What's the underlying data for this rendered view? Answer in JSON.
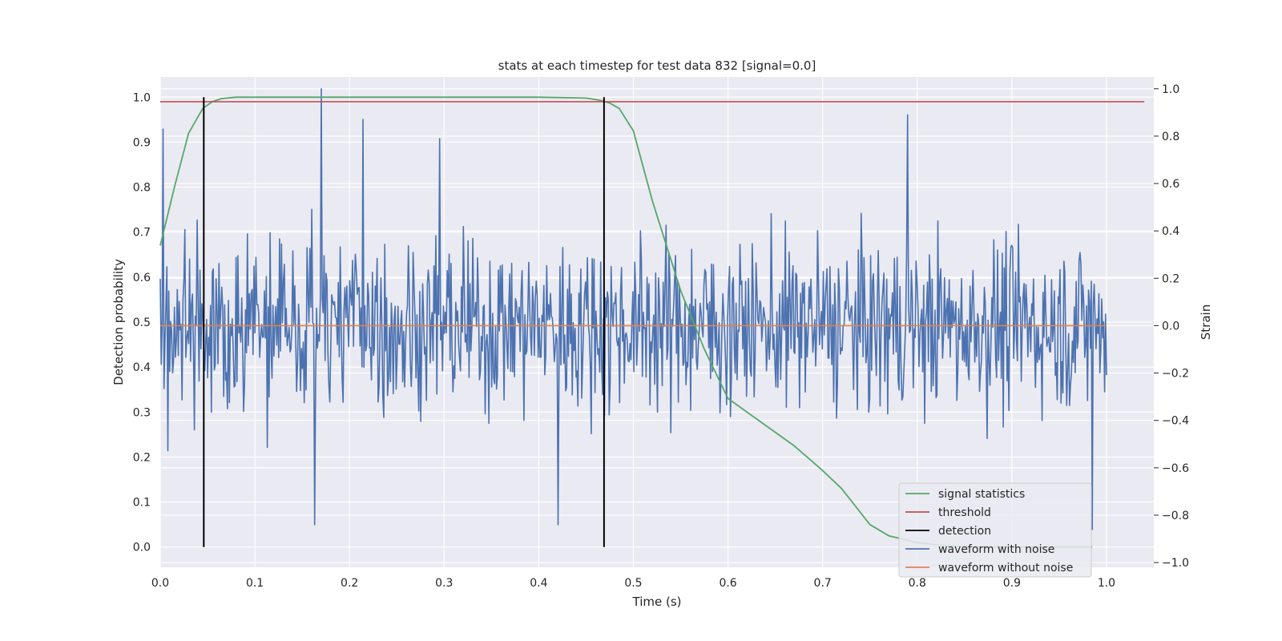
{
  "chart_data": {
    "type": "line",
    "title": "stats at each timestep for test data 832 [signal=0.0]",
    "xlabel": "Time (s)",
    "ylabel_left": "Detection probability",
    "ylabel_right": "Strain",
    "xlim": [
      0.0,
      1.05
    ],
    "ylim_left": [
      -0.045,
      1.045
    ],
    "ylim_right": [
      -1.02,
      1.05
    ],
    "x_ticks": [
      "0.0",
      "0.1",
      "0.2",
      "0.3",
      "0.4",
      "0.5",
      "0.6",
      "0.7",
      "0.8",
      "0.9",
      "1.0"
    ],
    "y_ticks_left": [
      "0.0",
      "0.1",
      "0.2",
      "0.3",
      "0.4",
      "0.5",
      "0.6",
      "0.7",
      "0.8",
      "0.9",
      "1.0"
    ],
    "y_ticks_right": [
      "−1.0",
      "−0.8",
      "−0.6",
      "−0.4",
      "−0.2",
      "0.0",
      "0.2",
      "0.4",
      "0.6",
      "0.8",
      "1.0"
    ],
    "grid": true,
    "legend_position": "bottom-right",
    "background_color": "#eaeaf2",
    "grid_color": "#ffffff",
    "series": [
      {
        "name": "signal statistics",
        "color": "#55a868",
        "axis": "left",
        "x": [
          0.0,
          0.015,
          0.03,
          0.045,
          0.055,
          0.065,
          0.08,
          0.1,
          0.2,
          0.3,
          0.4,
          0.45,
          0.465,
          0.475,
          0.485,
          0.5,
          0.52,
          0.55,
          0.575,
          0.6,
          0.64,
          0.67,
          0.7,
          0.72,
          0.75,
          0.77,
          0.8,
          0.83,
          0.86,
          0.9,
          0.95,
          0.985
        ],
        "y": [
          0.67,
          0.8,
          0.92,
          0.975,
          0.99,
          0.997,
          1.0,
          1.0,
          1.0,
          1.0,
          1.0,
          0.998,
          0.993,
          0.987,
          0.975,
          0.925,
          0.77,
          0.57,
          0.44,
          0.33,
          0.27,
          0.225,
          0.17,
          0.13,
          0.05,
          0.025,
          0.01,
          0.003,
          0.001,
          0.0,
          0.0,
          0.0
        ]
      },
      {
        "name": "threshold",
        "color": "#c44e52",
        "axis": "left",
        "x": [
          0.0,
          1.04
        ],
        "y": [
          0.99,
          0.99
        ]
      },
      {
        "name": "detection",
        "color": "#000000",
        "axis": "left",
        "x": [
          0.046,
          0.469
        ],
        "y_range": [
          0.0,
          1.0
        ]
      },
      {
        "name": "waveform with noise",
        "color": "#4c72b0",
        "axis": "right",
        "x_range": [
          0.0,
          1.0
        ],
        "num_points": 1000,
        "approx_range": [
          -0.92,
          1.0
        ],
        "notable_peaks": [
          {
            "x": 0.003,
            "y": 0.83
          },
          {
            "x": 0.17,
            "y": 1.0
          },
          {
            "x": 0.214,
            "y": 0.87
          },
          {
            "x": 0.163,
            "y": -0.84
          },
          {
            "x": 0.295,
            "y": 0.79
          },
          {
            "x": 0.42,
            "y": -0.84
          },
          {
            "x": 0.79,
            "y": 0.89
          },
          {
            "x": 0.985,
            "y": -0.86
          }
        ]
      },
      {
        "name": "waveform without noise",
        "color": "#dd8452",
        "axis": "right",
        "x": [
          0.0,
          1.0
        ],
        "y": [
          0.0,
          0.0
        ]
      }
    ],
    "legend": [
      "signal statistics",
      "threshold",
      "detection",
      "waveform with noise",
      "waveform without noise"
    ]
  }
}
